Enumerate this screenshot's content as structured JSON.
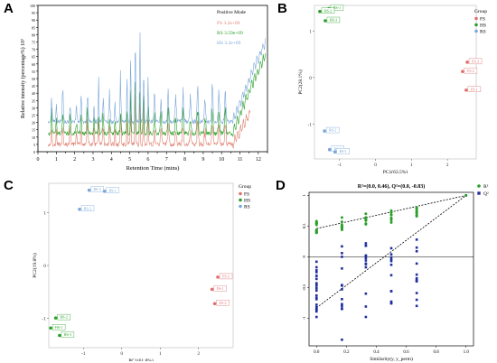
{
  "panels": {
    "a": "A",
    "b": "B",
    "c": "C",
    "d": "D"
  },
  "chart_data": [
    {
      "type": "line",
      "xlabel": "Retention Time (mins)",
      "ylabel": "Relative intensity (percentage%) 10³",
      "xlim": [
        0,
        12.5
      ],
      "x_ticks": [
        0,
        0.5,
        1,
        1.5,
        2,
        2.5,
        3,
        3.5,
        4,
        4.5,
        5,
        5.5,
        6,
        6.5,
        7,
        7.5,
        8,
        8.5,
        9,
        9.5,
        10,
        10.5,
        11,
        11.5,
        12,
        12.5
      ],
      "x_tick_labels": [
        "0",
        "1",
        "2",
        "3",
        "4",
        "5",
        "6",
        "7",
        "8",
        "9",
        "10",
        "11",
        "12"
      ],
      "y_tick_labels": [
        "0",
        "5",
        "10",
        "15",
        "20",
        "25",
        "30",
        "35",
        "40",
        "45",
        "50",
        "55",
        "60",
        "65",
        "70",
        "75",
        "80",
        "85",
        "90",
        "95",
        "100"
      ],
      "legend": {
        "title": "Positive Mode",
        "placement": "top-right",
        "entries": [
          "FS 3.2e+09",
          "RS 3.59e+09",
          "HS 3.2e+09"
        ]
      },
      "series": [
        {
          "name": "FS 3.2e+09",
          "color": "#e08070",
          "offset": 0,
          "values": []
        },
        {
          "name": "RS 3.59e+09",
          "color": "#2aa02a",
          "offset": 6,
          "values": []
        },
        {
          "name": "HS 3.2e+09",
          "color": "#7aa6d8",
          "offset": 14,
          "values": []
        }
      ]
    },
    {
      "type": "scatter",
      "xlabel": "PC1(63.5%)",
      "ylabel": "PC2(28.1%)",
      "xlim": [
        -1.7,
        2.8
      ],
      "ylim": [
        -1.75,
        1.55
      ],
      "x_ticks": [
        -1,
        0,
        1,
        2
      ],
      "y_ticks": [
        -1,
        0,
        1
      ],
      "legend": {
        "title": "Group",
        "placement": "top-right",
        "entries": [
          {
            "label": "FS",
            "color": "#e07070"
          },
          {
            "label": "HS",
            "color": "#2aa02a"
          },
          {
            "label": "RS",
            "color": "#7aa6d8"
          }
        ]
      },
      "points": [
        {
          "label": "HS-1",
          "x": -1.3,
          "y": 1.48,
          "group": "HS"
        },
        {
          "label": "HS-2",
          "x": -1.55,
          "y": 1.42,
          "group": "HS"
        },
        {
          "label": "HS-3",
          "x": -1.4,
          "y": 1.22,
          "group": "HS"
        },
        {
          "label": "FS-3",
          "x": 2.55,
          "y": 0.33,
          "group": "FS"
        },
        {
          "label": "FS-2",
          "x": 2.42,
          "y": 0.13,
          "group": "FS"
        },
        {
          "label": "FS-1",
          "x": 2.52,
          "y": -0.27,
          "group": "FS"
        },
        {
          "label": "RS-2",
          "x": -1.42,
          "y": -1.15,
          "group": "RS"
        },
        {
          "label": "RS-3",
          "x": -1.28,
          "y": -1.55,
          "group": "RS"
        },
        {
          "label": "RS-1",
          "x": -1.13,
          "y": -1.6,
          "group": "RS"
        }
      ]
    },
    {
      "type": "scatter",
      "xlabel": "PC1(61.8%)",
      "ylabel": "PC2(19.8%)",
      "xlim": [
        -1.9,
        2.9
      ],
      "ylim": [
        -1.55,
        1.55
      ],
      "x_ticks": [
        -1,
        0,
        1,
        2
      ],
      "y_ticks": [
        -1,
        0,
        1
      ],
      "legend": {
        "title": "Group",
        "placement": "top-right",
        "entries": [
          {
            "label": "FS",
            "color": "#e07070"
          },
          {
            "label": "HS",
            "color": "#2aa02a"
          },
          {
            "label": "RS",
            "color": "#7aa6d8"
          }
        ]
      },
      "points": [
        {
          "label": "RS-3",
          "x": -0.85,
          "y": 1.42,
          "group": "RS"
        },
        {
          "label": "RS-1",
          "x": -0.45,
          "y": 1.4,
          "group": "RS"
        },
        {
          "label": "RS-2",
          "x": -1.1,
          "y": 1.06,
          "group": "RS"
        },
        {
          "label": "FS-3",
          "x": 2.5,
          "y": -0.22,
          "group": "FS"
        },
        {
          "label": "FS-1",
          "x": 2.35,
          "y": -0.45,
          "group": "FS"
        },
        {
          "label": "FS-2",
          "x": 2.42,
          "y": -0.72,
          "group": "FS"
        },
        {
          "label": "HS-2",
          "x": -1.72,
          "y": -0.99,
          "group": "HS"
        },
        {
          "label": "HS-1",
          "x": -1.85,
          "y": -1.18,
          "group": "HS"
        },
        {
          "label": "HS-3",
          "x": -1.62,
          "y": -1.32,
          "group": "HS"
        }
      ]
    },
    {
      "type": "scatter",
      "title": "R²=(0.0, 0.46), Q²=(0.0, -0.83)",
      "xlabel": "Similarity(y, y_perm)",
      "xlim": [
        -0.05,
        1.05
      ],
      "ylim": [
        -1.45,
        1.05
      ],
      "x_ticks": [
        0.0,
        0.2,
        0.4,
        0.6,
        0.8,
        1.0
      ],
      "x_tick_labels": [
        "0.0",
        "0.2",
        "0.4",
        "0.6",
        "0.8",
        "1.0"
      ],
      "y_ticks": [
        1,
        0.5,
        0,
        -0.5,
        -1
      ],
      "y_tick_labels": [
        "1",
        "0.5",
        "0",
        "-0.5",
        "-1"
      ],
      "legend": {
        "placement": "top-right",
        "entries": [
          {
            "label": "R²",
            "color": "#2aa02a"
          },
          {
            "label": "Q²",
            "color": "#1f2e9e"
          }
        ]
      },
      "r2_points": [],
      "q2_points": [],
      "r2_regression": [
        [
          0.0,
          0.46
        ],
        [
          1.0,
          1.0
        ]
      ],
      "q2_regression": [
        [
          0.0,
          -0.83
        ],
        [
          1.0,
          1.0
        ]
      ]
    }
  ]
}
